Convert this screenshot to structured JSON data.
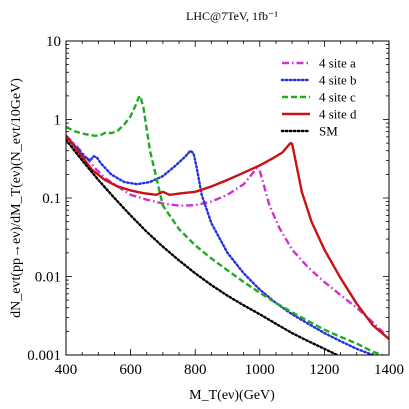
{
  "chart_data": {
    "type": "line",
    "title": "LHC@7TeV, 1fb⁻¹",
    "xlabel": "M_T(eν)(GeV)",
    "ylabel": "dN_evt(pp→eν)/dM_T(eν)(N_evt/10GeV)",
    "xscale": "linear",
    "yscale": "log",
    "xlim": [
      400,
      1400
    ],
    "ylim": [
      0.001,
      10
    ],
    "x_ticks": [
      400,
      600,
      800,
      1000,
      1200,
      1400
    ],
    "x_tick_labels": [
      "400",
      "600",
      "800",
      "1000",
      "1200",
      "1400"
    ],
    "y_ticks": [
      0.001,
      0.01,
      0.1,
      1,
      10
    ],
    "y_tick_labels": [
      "0.001",
      "0.01",
      "0.1",
      "1",
      "10"
    ],
    "grid": false,
    "legend_position": "top-right",
    "series": [
      {
        "name": "4 site  a",
        "color": "#cc33cc",
        "dash": "dashdot",
        "x": [
          400,
          430,
          460,
          490,
          520,
          560,
          600,
          650,
          700,
          750,
          800,
          850,
          900,
          950,
          975,
          990,
          1000,
          1010,
          1030,
          1060,
          1100,
          1150,
          1200,
          1250,
          1300,
          1350,
          1390
        ],
        "y": [
          0.62,
          0.47,
          0.34,
          0.24,
          0.18,
          0.14,
          0.11,
          0.095,
          0.085,
          0.08,
          0.081,
          0.09,
          0.11,
          0.15,
          0.2,
          0.24,
          0.22,
          0.16,
          0.08,
          0.042,
          0.022,
          0.013,
          0.0085,
          0.0058,
          0.004,
          0.0026,
          0.0018
        ]
      },
      {
        "name": "4 site  b",
        "color": "#2233dd",
        "dash": "dotted",
        "x": [
          400,
          430,
          460,
          475,
          485,
          495,
          510,
          540,
          580,
          620,
          660,
          700,
          740,
          770,
          785,
          795,
          805,
          820,
          850,
          900,
          950,
          1000,
          1050,
          1100,
          1150,
          1200,
          1250,
          1300,
          1350,
          1400
        ],
        "y": [
          0.62,
          0.45,
          0.33,
          0.3,
          0.34,
          0.33,
          0.27,
          0.2,
          0.16,
          0.15,
          0.16,
          0.19,
          0.26,
          0.34,
          0.4,
          0.37,
          0.24,
          0.11,
          0.048,
          0.02,
          0.011,
          0.0068,
          0.0046,
          0.0033,
          0.0025,
          0.0019,
          0.0015,
          0.0012,
          0.001,
          0.0008
        ]
      },
      {
        "name": "4 site  c",
        "color": "#22aa22",
        "dash": "dashed",
        "x": [
          400,
          430,
          460,
          490,
          510,
          525,
          540,
          560,
          580,
          600,
          615,
          625,
          630,
          640,
          660,
          700,
          750,
          800,
          850,
          900,
          950,
          1000,
          1050,
          1100,
          1150,
          1200,
          1250,
          1300,
          1350,
          1380
        ],
        "y": [
          0.8,
          0.7,
          0.65,
          0.62,
          0.64,
          0.69,
          0.67,
          0.72,
          0.86,
          1.1,
          1.5,
          1.9,
          2.0,
          1.4,
          0.4,
          0.08,
          0.04,
          0.025,
          0.017,
          0.012,
          0.0085,
          0.0062,
          0.0046,
          0.0035,
          0.0027,
          0.0021,
          0.0017,
          0.0014,
          0.0011,
          0.001
        ]
      },
      {
        "name": "4 site  d",
        "color": "#cc1111",
        "dash": "solid",
        "x": [
          400,
          440,
          480,
          520,
          560,
          600,
          640,
          680,
          700,
          720,
          760,
          800,
          850,
          900,
          950,
          1000,
          1040,
          1070,
          1085,
          1095,
          1100,
          1110,
          1130,
          1160,
          1200,
          1250,
          1300,
          1350,
          1400
        ],
        "y": [
          0.62,
          0.38,
          0.23,
          0.17,
          0.14,
          0.125,
          0.115,
          0.11,
          0.12,
          0.11,
          0.115,
          0.12,
          0.14,
          0.17,
          0.21,
          0.26,
          0.32,
          0.38,
          0.45,
          0.5,
          0.49,
          0.31,
          0.12,
          0.05,
          0.022,
          0.0095,
          0.0045,
          0.0024,
          0.0016
        ]
      },
      {
        "name": "SM",
        "color": "#000000",
        "dash": "dotted",
        "x": [
          400,
          450,
          500,
          550,
          600,
          650,
          700,
          750,
          800,
          850,
          900,
          950,
          1000,
          1050,
          1100,
          1150,
          1200,
          1250,
          1300,
          1330
        ],
        "y": [
          0.55,
          0.3,
          0.17,
          0.1,
          0.06,
          0.037,
          0.024,
          0.016,
          0.011,
          0.0078,
          0.0057,
          0.0043,
          0.0033,
          0.0025,
          0.0019,
          0.0015,
          0.0012,
          0.00095,
          0.00075,
          0.00065
        ]
      }
    ]
  }
}
